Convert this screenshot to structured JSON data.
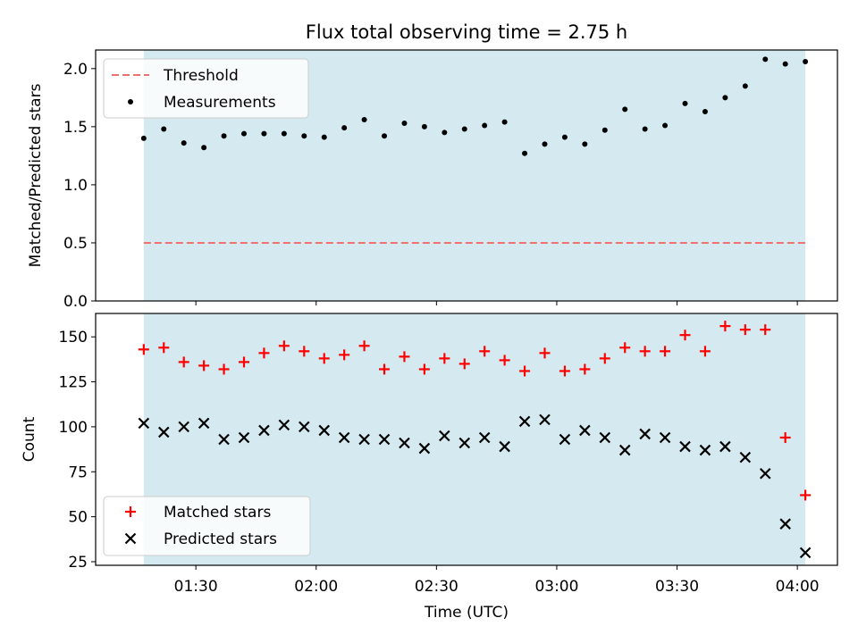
{
  "figure": {
    "title": "Flux total observing time = 2.75 h",
    "xlabel": "Time (UTC)"
  },
  "chart_data": [
    {
      "type": "scatter",
      "ylabel": "Matched/Predicted stars",
      "ylim": [
        0,
        2.16
      ],
      "yticks": [
        0.0,
        0.5,
        1.0,
        1.5,
        2.0
      ],
      "ytick_labels": [
        "0.0",
        "0.5",
        "1.0",
        "1.5",
        "2.0"
      ],
      "legend": {
        "location": "upper-left",
        "entries": [
          "Threshold",
          "Measurements"
        ]
      },
      "threshold": {
        "name": "Threshold",
        "value": 0.5,
        "color": "#f07070"
      },
      "series": [
        {
          "name": "Measurements",
          "color": "#000000",
          "marker": "dot",
          "x": [
            "01:17",
            "01:22",
            "01:27",
            "01:32",
            "01:37",
            "01:42",
            "01:47",
            "01:52",
            "01:57",
            "02:02",
            "02:07",
            "02:12",
            "02:17",
            "02:22",
            "02:27",
            "02:32",
            "02:37",
            "02:42",
            "02:47",
            "02:52",
            "02:57",
            "03:02",
            "03:07",
            "03:12",
            "03:17",
            "03:22",
            "03:27",
            "03:32",
            "03:37",
            "03:42",
            "03:47",
            "03:52",
            "03:57",
            "04:02"
          ],
          "y": [
            1.4,
            1.48,
            1.36,
            1.32,
            1.42,
            1.44,
            1.44,
            1.44,
            1.42,
            1.41,
            1.49,
            1.56,
            1.42,
            1.53,
            1.5,
            1.45,
            1.48,
            1.51,
            1.54,
            1.27,
            1.35,
            1.41,
            1.35,
            1.47,
            1.65,
            1.48,
            1.51,
            1.7,
            1.63,
            1.75,
            1.85,
            2.08,
            2.04,
            2.06
          ]
        }
      ]
    },
    {
      "type": "scatter",
      "ylabel": "Count",
      "ylim": [
        23,
        163
      ],
      "yticks": [
        25,
        50,
        75,
        100,
        125,
        150
      ],
      "ytick_labels": [
        "25",
        "50",
        "75",
        "100",
        "125",
        "150"
      ],
      "legend": {
        "location": "lower-left",
        "entries": [
          "Matched stars",
          "Predicted stars"
        ]
      },
      "series": [
        {
          "name": "Matched stars",
          "color": "#ff0000",
          "marker": "plus",
          "x": [
            "01:17",
            "01:22",
            "01:27",
            "01:32",
            "01:37",
            "01:42",
            "01:47",
            "01:52",
            "01:57",
            "02:02",
            "02:07",
            "02:12",
            "02:17",
            "02:22",
            "02:27",
            "02:32",
            "02:37",
            "02:42",
            "02:47",
            "02:52",
            "02:57",
            "03:02",
            "03:07",
            "03:12",
            "03:17",
            "03:22",
            "03:27",
            "03:32",
            "03:37",
            "03:42",
            "03:47",
            "03:52",
            "03:57",
            "04:02"
          ],
          "y": [
            143,
            144,
            136,
            134,
            132,
            136,
            141,
            145,
            142,
            138,
            140,
            145,
            132,
            139,
            132,
            138,
            135,
            142,
            137,
            131,
            141,
            131,
            132,
            138,
            144,
            142,
            142,
            151,
            142,
            156,
            154,
            154,
            94,
            62
          ]
        },
        {
          "name": "Predicted stars",
          "color": "#000000",
          "marker": "x",
          "x": [
            "01:17",
            "01:22",
            "01:27",
            "01:32",
            "01:37",
            "01:42",
            "01:47",
            "01:52",
            "01:57",
            "02:02",
            "02:07",
            "02:12",
            "02:17",
            "02:22",
            "02:27",
            "02:32",
            "02:37",
            "02:42",
            "02:47",
            "02:52",
            "02:57",
            "03:02",
            "03:07",
            "03:12",
            "03:17",
            "03:22",
            "03:27",
            "03:32",
            "03:37",
            "03:42",
            "03:47",
            "03:52",
            "03:57",
            "04:02"
          ],
          "y": [
            102,
            97,
            100,
            102,
            93,
            94,
            98,
            101,
            100,
            98,
            94,
            93,
            93,
            91,
            88,
            95,
            91,
            94,
            89,
            103,
            104,
            93,
            98,
            94,
            87,
            96,
            94,
            89,
            87,
            89,
            83,
            74,
            46,
            30
          ]
        }
      ]
    }
  ],
  "x_axis": {
    "range": [
      "01:05",
      "04:10"
    ],
    "ticks": [
      "01:30",
      "02:00",
      "02:30",
      "03:00",
      "03:30",
      "04:00"
    ],
    "observing_window": [
      "01:17",
      "04:02"
    ],
    "window_color": "#d4eaf0"
  }
}
